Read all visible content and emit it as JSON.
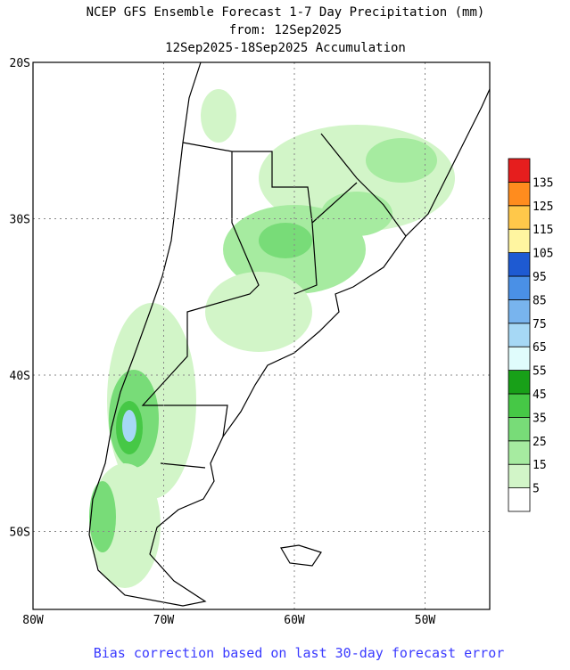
{
  "title": [
    "NCEP GFS Ensemble Forecast 1-7 Day Precipitation (mm)",
    "from: 12Sep2025",
    "12Sep2025-18Sep2025 Accumulation"
  ],
  "lat_labels": [
    "20S",
    "30S",
    "40S",
    "50S"
  ],
  "lon_labels": [
    "80W",
    "70W",
    "60W",
    "50W"
  ],
  "colorbar": {
    "levels": [
      5,
      15,
      25,
      35,
      45,
      55,
      65,
      75,
      85,
      95,
      105,
      115,
      125,
      135
    ],
    "colors": [
      "#ffffff",
      "#d2f5c8",
      "#a6eba0",
      "#78dc78",
      "#46c846",
      "#18a018",
      "#e0fcfc",
      "#a6d8f5",
      "#78b4ee",
      "#4a90e6",
      "#1e5ad2",
      "#fff5a0",
      "#ffc84a",
      "#ff8c1e",
      "#e61e1e"
    ]
  },
  "footer": "Bias correction based on last 30-day forecast error"
}
